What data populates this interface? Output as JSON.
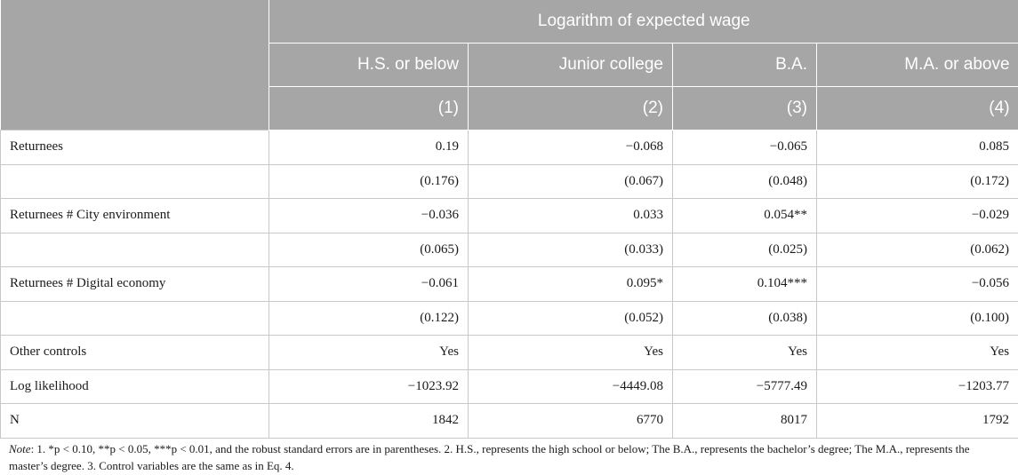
{
  "header": {
    "group_title": "Logarithm of expected wage",
    "columns": [
      "H.S. or below",
      "Junior college",
      "B.A.",
      "M.A. or above"
    ],
    "column_numbers": [
      "(1)",
      "(2)",
      "(3)",
      "(4)"
    ]
  },
  "rows": [
    {
      "label": "Returnees",
      "values": [
        "0.19",
        "−0.068",
        "−0.065",
        "0.085"
      ]
    },
    {
      "label": "",
      "values": [
        "(0.176)",
        "(0.067)",
        "(0.048)",
        "(0.172)"
      ]
    },
    {
      "label": "Returnees # City environment",
      "values": [
        "−0.036",
        "0.033",
        "0.054**",
        "−0.029"
      ]
    },
    {
      "label": "",
      "values": [
        "(0.065)",
        "(0.033)",
        "(0.025)",
        "(0.062)"
      ]
    },
    {
      "label": "Returnees # Digital economy",
      "values": [
        "−0.061",
        "0.095*",
        "0.104***",
        "−0.056"
      ]
    },
    {
      "label": "",
      "values": [
        "(0.122)",
        "(0.052)",
        "(0.038)",
        "(0.100)"
      ]
    },
    {
      "label": "Other controls",
      "values": [
        "Yes",
        "Yes",
        "Yes",
        "Yes"
      ]
    },
    {
      "label": "Log likelihood",
      "values": [
        "−1023.92",
        "−4449.08",
        "−5777.49",
        "−1203.77"
      ]
    },
    {
      "label": "N",
      "values": [
        "1842",
        "6770",
        "8017",
        "1792"
      ]
    }
  ],
  "note": {
    "label": "Note",
    "text": ": 1. *p < 0.10, **p < 0.05, ***p < 0.01, and the robust standard errors are in parentheses. 2. H.S., represents the high school or below; The B.A., represents the bachelor’s degree; The M.A., represents the master’s degree. 3. Control variables are the same as in Eq. 4."
  }
}
